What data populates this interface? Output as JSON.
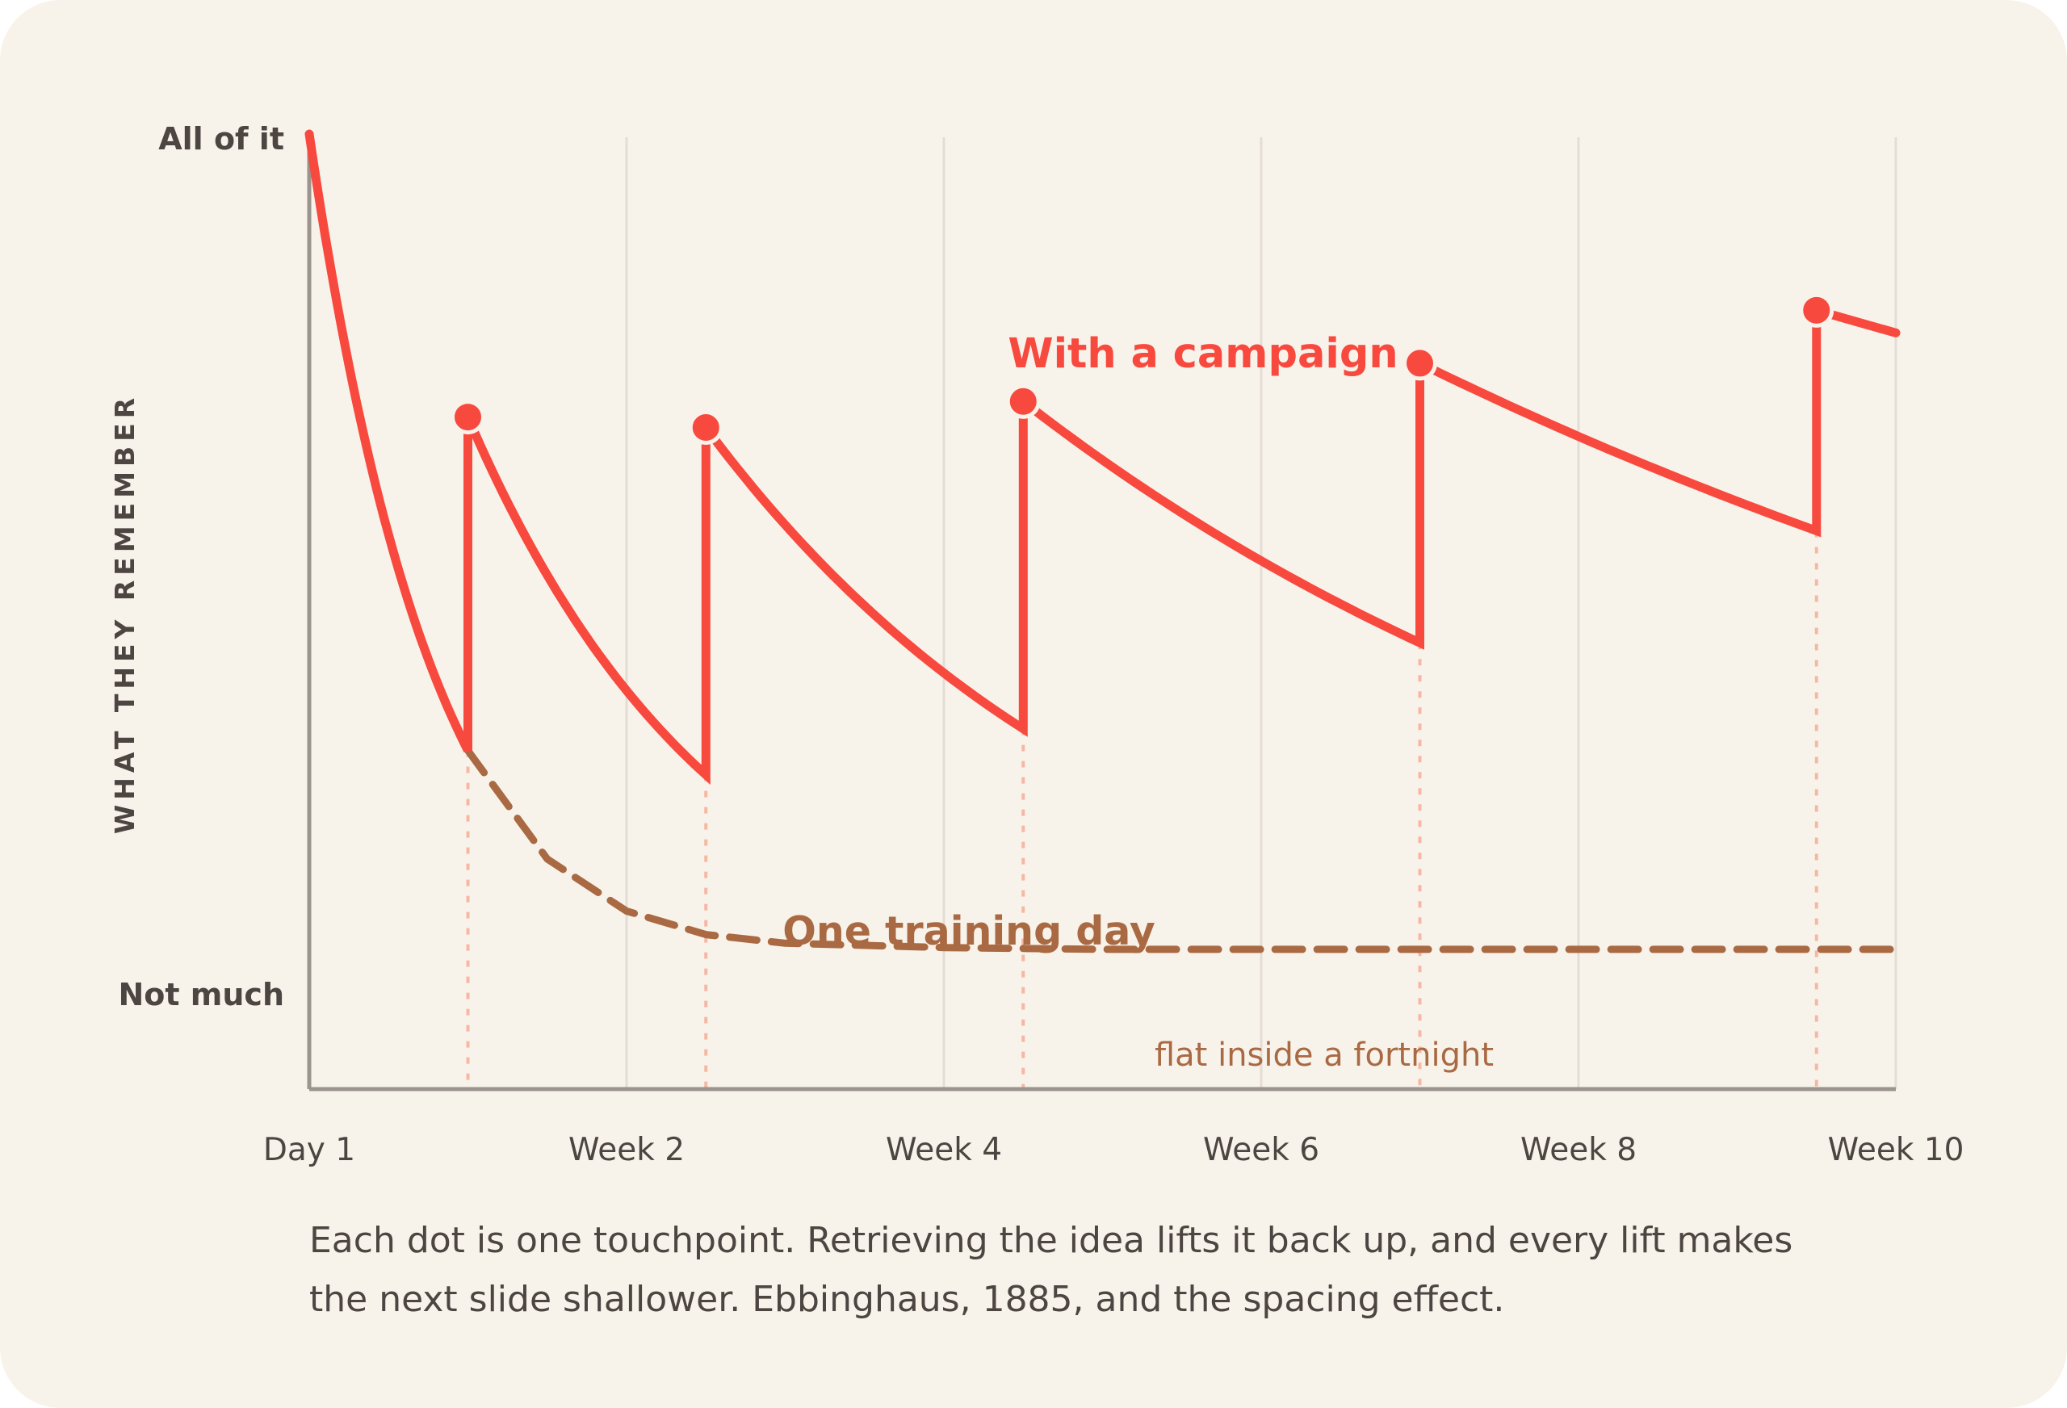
{
  "chart_data": {
    "type": "line",
    "y_axis_label": "WHAT THEY REMEMBER",
    "y_tick_labels": {
      "top": "All of it",
      "bottom": "Not much"
    },
    "x_ticks": [
      {
        "label": "Day 1",
        "week": 0
      },
      {
        "label": "Week 2",
        "week": 2
      },
      {
        "label": "Week 4",
        "week": 4
      },
      {
        "label": "Week 6",
        "week": 6
      },
      {
        "label": "Week 8",
        "week": 8
      },
      {
        "label": "Week 10",
        "week": 10
      }
    ],
    "xlim": [
      0,
      10
    ],
    "ylim": [
      -0.1,
      1
    ],
    "series": [
      {
        "name": "With a campaign",
        "color": "#f8493f",
        "style": "solid",
        "touchpoints": [
          {
            "week": 1.0,
            "before": 0.29,
            "after": 0.674
          },
          {
            "week": 2.5,
            "before": 0.262,
            "after": 0.662
          },
          {
            "week": 4.5,
            "before": 0.315,
            "after": 0.692
          },
          {
            "week": 7.0,
            "before": 0.414,
            "after": 0.736
          },
          {
            "week": 9.5,
            "before": 0.543,
            "after": 0.797
          }
        ],
        "end": {
          "week": 10.0,
          "value": 0.771
        }
      },
      {
        "name": "One training day",
        "color": "#a96a43",
        "style": "dashed",
        "points": [
          [
            1.0,
            0.29
          ],
          [
            1.5,
            0.165
          ],
          [
            2.0,
            0.105
          ],
          [
            2.5,
            0.078
          ],
          [
            3.0,
            0.068
          ],
          [
            4.0,
            0.063
          ],
          [
            5.0,
            0.061
          ],
          [
            6.0,
            0.061
          ],
          [
            7.0,
            0.061
          ],
          [
            8.0,
            0.061
          ],
          [
            9.0,
            0.061
          ],
          [
            10.0,
            0.061
          ]
        ]
      }
    ],
    "annotation": "flat inside a fortnight",
    "caption": "Each dot is one touchpoint. Retrieving the idea lifts it back up, and every lift makes the next slide shallower. Ebbinghaus, 1885, and the spacing effect."
  },
  "colors": {
    "background": "#f8f3ea",
    "campaign": "#f8493f",
    "training": "#a96a43",
    "guide": "#f6b7a3",
    "grid": "#e3ddd5",
    "axis": "#9a938e",
    "text": "#4d4542"
  }
}
